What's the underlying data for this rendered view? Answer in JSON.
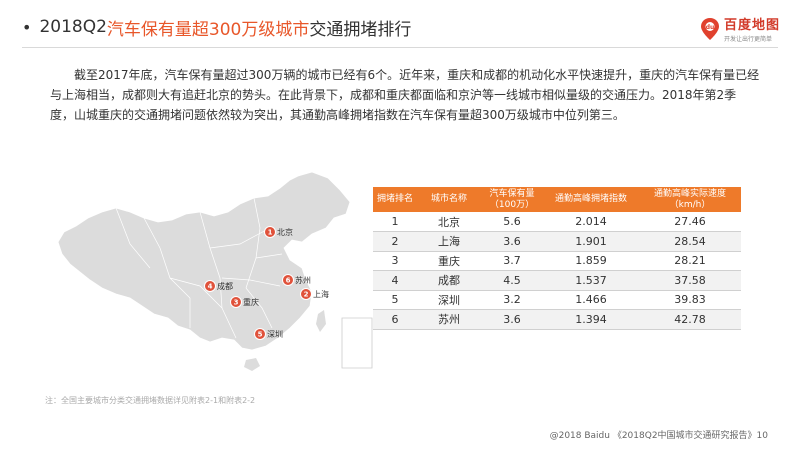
{
  "header": {
    "bullet": "•",
    "title_prefix": "2018Q2 ",
    "title_highlight": "汽车保有量超300万级城市",
    "title_suffix": "交通拥堵排行"
  },
  "logo": {
    "icon": "baidu-map-pin-icon",
    "main": "百度地图",
    "sub": "开发让出行更简单"
  },
  "intro": "截至2017年底，汽车保有量超过300万辆的城市已经有6个。近年来，重庆和成都的机动化水平快速提升，重庆的汽车保有量已经与上海相当，成都则大有追赶北京的势头。在此背景下，成都和重庆都面临和京沪等一线城市相似量级的交通压力。2018年第2季度，山城重庆的交通拥堵问题依然较为突出，其通勤高峰拥堵指数在汽车保有量超300万级城市中位列第三。",
  "map": {
    "pins": [
      {
        "num": "1",
        "city": "北京"
      },
      {
        "num": "2",
        "city": "上海"
      },
      {
        "num": "3",
        "city": "重庆"
      },
      {
        "num": "4",
        "city": "成都"
      },
      {
        "num": "5",
        "city": "深圳"
      },
      {
        "num": "6",
        "city": "苏州"
      }
    ]
  },
  "table": {
    "headers": [
      "拥堵排名",
      "城市名称",
      "汽车保有量（100万）",
      "通勤高峰拥堵指数",
      "通勤高峰实际速度（km/h）"
    ],
    "rows": [
      [
        "1",
        "北京",
        "5.6",
        "2.014",
        "27.46"
      ],
      [
        "2",
        "上海",
        "3.6",
        "1.901",
        "28.54"
      ],
      [
        "3",
        "重庆",
        "3.7",
        "1.859",
        "28.21"
      ],
      [
        "4",
        "成都",
        "4.5",
        "1.537",
        "37.58"
      ],
      [
        "5",
        "深圳",
        "3.2",
        "1.466",
        "39.83"
      ],
      [
        "6",
        "苏州",
        "3.6",
        "1.394",
        "42.78"
      ]
    ]
  },
  "footnote": "注：全国主要城市分类交通拥堵数据详见附表2-1和附表2-2",
  "source": "@2018 Baidu 《2018Q2中国城市交通研究报告》10",
  "colors": {
    "accent": "#e8572a",
    "table_header": "#ee7a2a",
    "map_fill": "#dcdcdc",
    "pin": "#e0523b"
  }
}
